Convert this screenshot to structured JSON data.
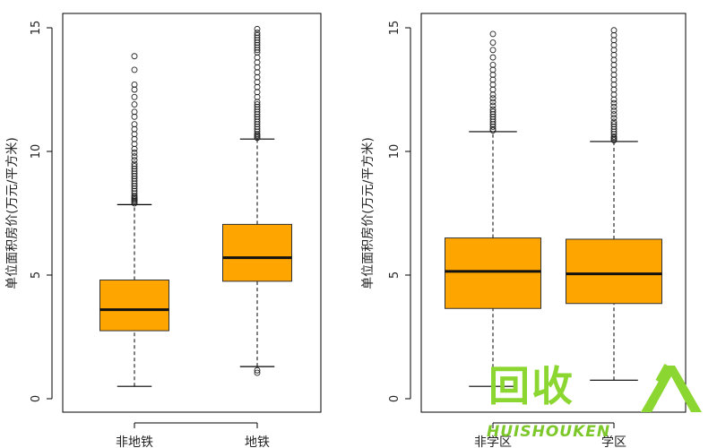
{
  "chart_data": [
    {
      "type": "box",
      "title": "",
      "xlabel": "",
      "ylabel": "单位面积房价(万元/平方米)",
      "ylim": [
        0,
        15
      ],
      "yticks": [
        0,
        5,
        10,
        15
      ],
      "categories": [
        "非地铁",
        "地铁"
      ],
      "box_color": "#FFA500",
      "boxes": [
        {
          "name": "非地铁",
          "whisker_low": 0.5,
          "q1": 2.75,
          "median": 3.6,
          "q3": 4.8,
          "whisker_high": 7.85,
          "outliers": [
            7.9,
            7.95,
            8.0,
            8.05,
            8.1,
            8.15,
            8.2,
            8.3,
            8.4,
            8.5,
            8.6,
            8.7,
            8.8,
            8.9,
            9.0,
            9.1,
            9.2,
            9.3,
            9.4,
            9.5,
            9.65,
            9.8,
            9.95,
            10.1,
            10.3,
            10.5,
            10.7,
            10.9,
            11.1,
            11.4,
            11.6,
            11.9,
            12.2,
            12.5,
            12.7,
            13.3,
            13.85
          ]
        },
        {
          "name": "地铁",
          "whisker_low": 1.3,
          "q1": 4.75,
          "median": 5.7,
          "q3": 7.05,
          "whisker_high": 10.5,
          "outliers": [
            1.05,
            1.15,
            10.55,
            10.6,
            10.65,
            10.7,
            10.8,
            10.9,
            11.0,
            11.1,
            11.2,
            11.3,
            11.4,
            11.5,
            11.6,
            11.7,
            11.8,
            11.9,
            12.0,
            12.2,
            12.4,
            12.6,
            12.8,
            13.0,
            13.2,
            13.4,
            13.6,
            13.8,
            14.0,
            14.1,
            14.2,
            14.3,
            14.4,
            14.5,
            14.6,
            14.7,
            14.8,
            14.95
          ]
        }
      ]
    },
    {
      "type": "box",
      "title": "",
      "xlabel": "",
      "ylabel": "单位面积房价(万元/平方米)",
      "ylim": [
        0,
        15
      ],
      "yticks": [
        0,
        5,
        10,
        15
      ],
      "categories": [
        "非学区",
        "学区"
      ],
      "box_color": "#FFA500",
      "boxes": [
        {
          "name": "非学区",
          "whisker_low": 0.5,
          "q1": 3.65,
          "median": 5.15,
          "q3": 6.5,
          "whisker_high": 10.8,
          "outliers": [
            10.85,
            10.9,
            11.0,
            11.1,
            11.2,
            11.3,
            11.4,
            11.5,
            11.6,
            11.7,
            11.85,
            12.0,
            12.15,
            12.3,
            12.5,
            12.7,
            12.9,
            13.1,
            13.3,
            13.5,
            13.8,
            14.1,
            14.4,
            14.75
          ]
        },
        {
          "name": "学区",
          "whisker_low": 0.75,
          "q1": 3.85,
          "median": 5.05,
          "q3": 6.45,
          "whisker_high": 10.4,
          "outliers": [
            10.45,
            10.5,
            10.55,
            10.6,
            10.7,
            10.8,
            10.9,
            11.0,
            11.1,
            11.2,
            11.35,
            11.5,
            11.65,
            11.8,
            11.95,
            12.1,
            12.3,
            12.5,
            12.7,
            12.9,
            13.1,
            13.3,
            13.5,
            13.7,
            13.9,
            14.1,
            14.3,
            14.5,
            14.7,
            14.9
          ]
        }
      ]
    }
  ],
  "watermark": {
    "main": "回收",
    "sub": "HUISHOUKEN",
    "color": "#8bd630"
  }
}
